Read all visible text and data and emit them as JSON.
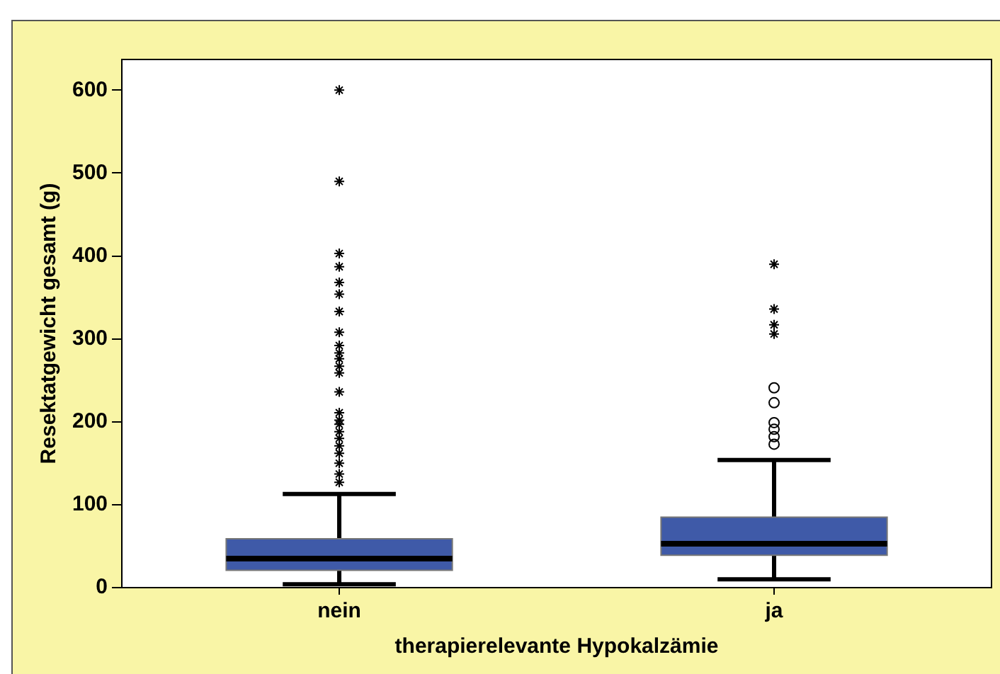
{
  "chart_data": {
    "type": "box",
    "xlabel": "therapierelevante Hypokalzämie",
    "ylabel": "Resektatgewicht gesamt (g)",
    "categories": [
      "nein",
      "ja"
    ],
    "ylim": [
      0,
      637
    ],
    "yticks": [
      0,
      100,
      200,
      300,
      400,
      500,
      600
    ],
    "grid": false,
    "legend": false,
    "color": "#3f5aa8",
    "boxes": [
      {
        "low": 4,
        "q1": 21,
        "median": 35,
        "q3": 59,
        "high": 113,
        "outliers": [
          600,
          490,
          403,
          387,
          368,
          354,
          333,
          308,
          292,
          283,
          276,
          267,
          259,
          236,
          211,
          202,
          197,
          188,
          180,
          171,
          162,
          150,
          137,
          127
        ]
      },
      {
        "low": 10,
        "q1": 39,
        "median": 53,
        "q3": 85,
        "high": 154,
        "outliers": [
          390,
          336,
          317,
          306
        ]
      }
    ],
    "series": [
      {
        "type": "scatter",
        "x": [
          "ja",
          "ja",
          "ja",
          "ja",
          "ja",
          "ja"
        ],
        "values": [
          241,
          223,
          199,
          191,
          182,
          173
        ],
        "marker": "circle",
        "color": "#000000"
      }
    ]
  }
}
